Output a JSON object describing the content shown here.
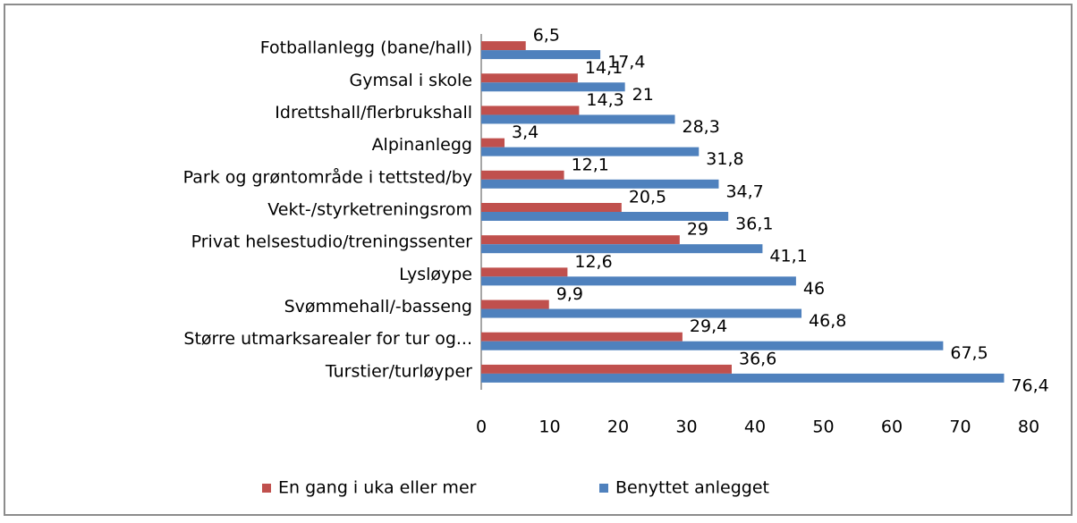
{
  "chart_data": {
    "type": "bar",
    "orientation": "horizontal",
    "categories": [
      "Fotballanlegg (bane/hall)",
      "Gymsal i skole",
      "Idrettshall/flerbrukshall",
      "Alpinanlegg",
      "Park og grøntområde i tettsted/by",
      "Vekt-/styrketreningsrom",
      "Privat helsestudio/treningssenter",
      "Lysløype",
      "Svømmehall/-basseng",
      "Større utmarksarealer for tur og...",
      "Turstier/turløyper"
    ],
    "series": [
      {
        "name": "En gang i uka eller mer",
        "color": "#c0504d",
        "values": [
          6.5,
          14.1,
          14.3,
          3.4,
          12.1,
          20.5,
          29,
          12.6,
          9.9,
          29.4,
          36.6
        ],
        "value_labels": [
          "6,5",
          "14,1",
          "14,3",
          "3,4",
          "12,1",
          "20,5",
          "29",
          "12,6",
          "9,9",
          "29,4",
          "36,6"
        ]
      },
      {
        "name": "Benyttet anlegget",
        "color": "#4f81bd",
        "values": [
          17.4,
          21,
          28.3,
          31.8,
          34.7,
          36.1,
          41.1,
          46,
          46.8,
          67.5,
          76.4
        ],
        "value_labels": [
          "17,4",
          "21",
          "28,3",
          "31,8",
          "34,7",
          "36,1",
          "41,1",
          "46",
          "46,8",
          "67,5",
          "76,4"
        ]
      }
    ],
    "xlim": [
      0,
      80
    ],
    "xticks": [
      0,
      10,
      20,
      30,
      40,
      50,
      60,
      70,
      80
    ],
    "grid": false,
    "legend": "bottom"
  }
}
